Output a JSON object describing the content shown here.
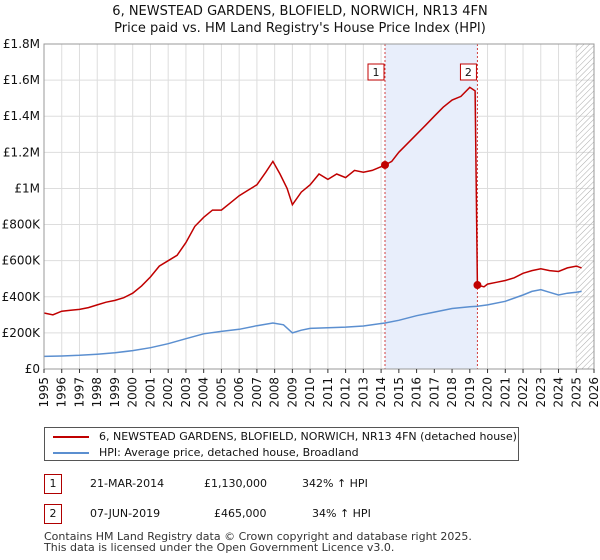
{
  "title_line1": "6, NEWSTEAD GARDENS, BLOFIELD, NORWICH, NR13 4FN",
  "title_line2": "Price paid vs. HM Land Registry's House Price Index (HPI)",
  "chart_data": {
    "type": "line",
    "title": "6, NEWSTEAD GARDENS, BLOFIELD, NORWICH, NR13 4FN — Price paid vs. HM Land Registry's House Price Index (HPI)",
    "xlabel": "",
    "ylabel": "",
    "xlim": [
      1995,
      2026
    ],
    "ylim": [
      0,
      1800000
    ],
    "y_ticks": [
      0,
      200000,
      400000,
      600000,
      800000,
      1000000,
      1200000,
      1400000,
      1600000,
      1800000
    ],
    "y_tick_labels": [
      "£0",
      "£200K",
      "£400K",
      "£600K",
      "£800K",
      "£1M",
      "£1.2M",
      "£1.4M",
      "£1.6M",
      "£1.8M"
    ],
    "x_ticks": [
      1995,
      1996,
      1997,
      1998,
      1999,
      2000,
      2001,
      2002,
      2003,
      2004,
      2005,
      2006,
      2007,
      2008,
      2009,
      2010,
      2011,
      2012,
      2013,
      2014,
      2015,
      2016,
      2017,
      2018,
      2019,
      2020,
      2021,
      2022,
      2023,
      2024,
      2025,
      2026
    ],
    "x_tick_labels": [
      "1995",
      "1996",
      "1997",
      "1998",
      "1999",
      "2000",
      "2001",
      "2002",
      "2003",
      "2004",
      "2005",
      "2006",
      "2007",
      "2008",
      "2009",
      "2010",
      "2011",
      "2012",
      "2013",
      "2014",
      "2015",
      "2016",
      "2017",
      "2018",
      "2019",
      "2020",
      "2021",
      "2022",
      "2023",
      "2024",
      "2025",
      "2026"
    ],
    "grid": true,
    "shaded_span": [
      2014.22,
      2019.43
    ],
    "hatched_from": 2025.0,
    "series": [
      {
        "name": "6, NEWSTEAD GARDENS, BLOFIELD, NORWICH, NR13 4FN (detached house)",
        "color": "#c00000",
        "points": [
          [
            1995.0,
            310000
          ],
          [
            1995.5,
            300000
          ],
          [
            1996.0,
            320000
          ],
          [
            1996.5,
            325000
          ],
          [
            1997.0,
            330000
          ],
          [
            1997.5,
            340000
          ],
          [
            1998.0,
            355000
          ],
          [
            1998.5,
            370000
          ],
          [
            1999.0,
            380000
          ],
          [
            1999.5,
            395000
          ],
          [
            2000.0,
            420000
          ],
          [
            2000.5,
            460000
          ],
          [
            2001.0,
            510000
          ],
          [
            2001.5,
            570000
          ],
          [
            2002.0,
            600000
          ],
          [
            2002.5,
            630000
          ],
          [
            2003.0,
            700000
          ],
          [
            2003.5,
            790000
          ],
          [
            2004.0,
            840000
          ],
          [
            2004.5,
            880000
          ],
          [
            2005.0,
            880000
          ],
          [
            2005.5,
            920000
          ],
          [
            2006.0,
            960000
          ],
          [
            2006.5,
            990000
          ],
          [
            2007.0,
            1020000
          ],
          [
            2007.5,
            1090000
          ],
          [
            2007.9,
            1150000
          ],
          [
            2008.3,
            1080000
          ],
          [
            2008.7,
            1000000
          ],
          [
            2009.0,
            910000
          ],
          [
            2009.5,
            980000
          ],
          [
            2010.0,
            1020000
          ],
          [
            2010.5,
            1080000
          ],
          [
            2011.0,
            1050000
          ],
          [
            2011.5,
            1080000
          ],
          [
            2012.0,
            1060000
          ],
          [
            2012.5,
            1100000
          ],
          [
            2013.0,
            1090000
          ],
          [
            2013.5,
            1100000
          ],
          [
            2014.22,
            1130000
          ],
          [
            2014.6,
            1150000
          ],
          [
            2015.0,
            1200000
          ],
          [
            2015.5,
            1250000
          ],
          [
            2016.0,
            1300000
          ],
          [
            2016.5,
            1350000
          ],
          [
            2017.0,
            1400000
          ],
          [
            2017.5,
            1450000
          ],
          [
            2018.0,
            1490000
          ],
          [
            2018.5,
            1510000
          ],
          [
            2019.0,
            1560000
          ],
          [
            2019.3,
            1540000
          ],
          [
            2019.43,
            465000
          ],
          [
            2019.8,
            455000
          ],
          [
            2020.0,
            470000
          ],
          [
            2020.5,
            480000
          ],
          [
            2021.0,
            490000
          ],
          [
            2021.5,
            505000
          ],
          [
            2022.0,
            530000
          ],
          [
            2022.5,
            545000
          ],
          [
            2023.0,
            555000
          ],
          [
            2023.5,
            545000
          ],
          [
            2024.0,
            540000
          ],
          [
            2024.5,
            560000
          ],
          [
            2025.0,
            570000
          ],
          [
            2025.3,
            560000
          ]
        ]
      },
      {
        "name": "HPI: Average price, detached house, Broadland",
        "color": "#5b8fd0",
        "points": [
          [
            1995.0,
            70000
          ],
          [
            1996.0,
            72000
          ],
          [
            1997.0,
            76000
          ],
          [
            1998.0,
            82000
          ],
          [
            1999.0,
            90000
          ],
          [
            2000.0,
            102000
          ],
          [
            2001.0,
            118000
          ],
          [
            2002.0,
            140000
          ],
          [
            2003.0,
            168000
          ],
          [
            2004.0,
            195000
          ],
          [
            2005.0,
            208000
          ],
          [
            2006.0,
            220000
          ],
          [
            2007.0,
            240000
          ],
          [
            2007.9,
            255000
          ],
          [
            2008.5,
            245000
          ],
          [
            2009.0,
            200000
          ],
          [
            2009.5,
            215000
          ],
          [
            2010.0,
            225000
          ],
          [
            2011.0,
            228000
          ],
          [
            2012.0,
            232000
          ],
          [
            2013.0,
            238000
          ],
          [
            2014.22,
            255000
          ],
          [
            2015.0,
            270000
          ],
          [
            2016.0,
            295000
          ],
          [
            2017.0,
            315000
          ],
          [
            2018.0,
            335000
          ],
          [
            2019.0,
            345000
          ],
          [
            2019.43,
            348000
          ],
          [
            2020.0,
            355000
          ],
          [
            2021.0,
            375000
          ],
          [
            2022.0,
            410000
          ],
          [
            2022.5,
            430000
          ],
          [
            2023.0,
            440000
          ],
          [
            2023.5,
            425000
          ],
          [
            2024.0,
            410000
          ],
          [
            2024.5,
            420000
          ],
          [
            2025.0,
            425000
          ],
          [
            2025.3,
            430000
          ]
        ]
      }
    ],
    "annotations": [
      {
        "label": "1",
        "x": 2014.22,
        "y": 1130000
      },
      {
        "label": "2",
        "x": 2019.43,
        "y": 465000
      }
    ]
  },
  "legend": {
    "property_label": "6, NEWSTEAD GARDENS, BLOFIELD, NORWICH, NR13 4FN (detached house)",
    "hpi_label": "HPI: Average price, detached house, Broadland",
    "property_color": "#c00000",
    "hpi_color": "#5b8fd0"
  },
  "sales": [
    {
      "num": "1",
      "date": "21-MAR-2014",
      "price": "£1,130,000",
      "hpi": "342% ↑ HPI"
    },
    {
      "num": "2",
      "date": "07-JUN-2019",
      "price": "£465,000",
      "hpi": "34% ↑ HPI"
    }
  ],
  "footer_line1": "Contains HM Land Registry data © Crown copyright and database right 2025.",
  "footer_line2": "This data is licensed under the Open Government Licence v3.0."
}
